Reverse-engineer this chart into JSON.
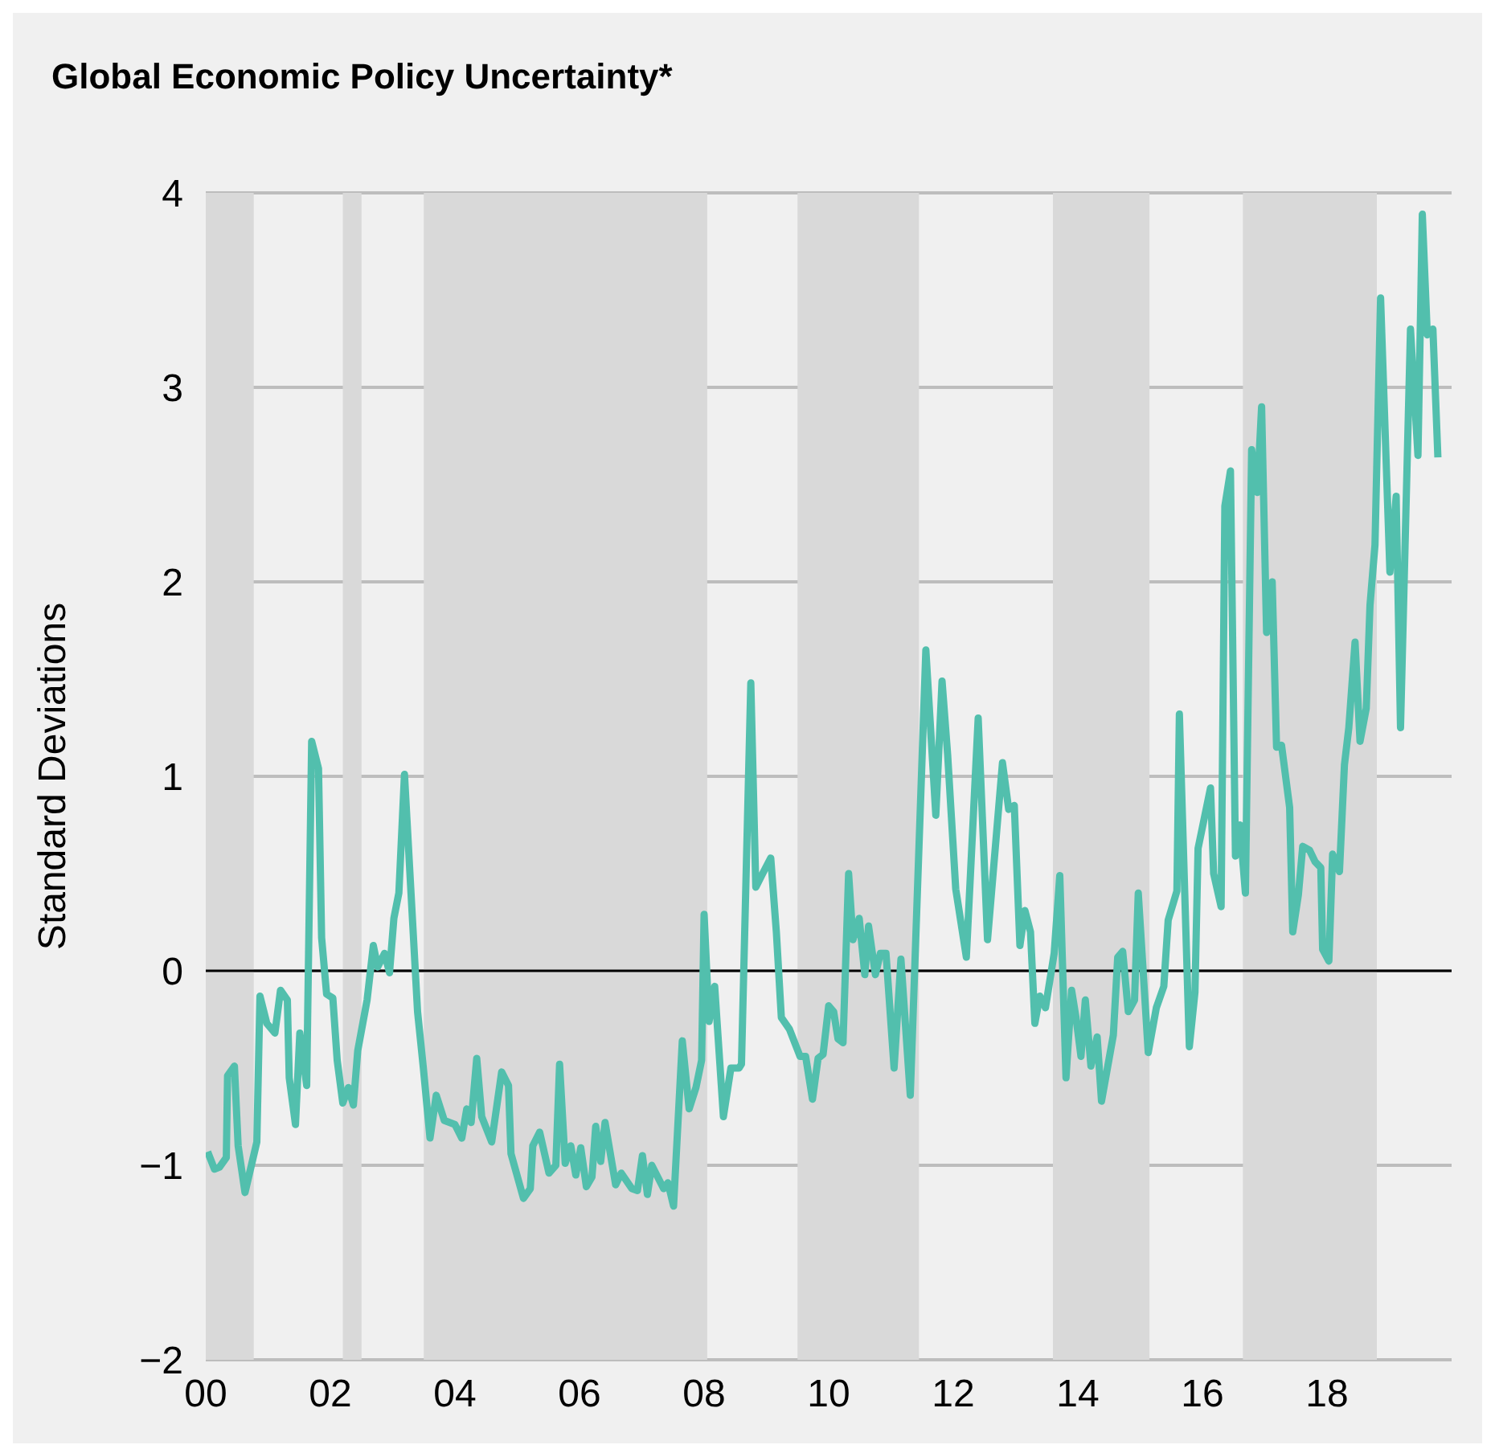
{
  "chart_data": {
    "type": "line",
    "title": "Global Economic Policy Uncertainty*",
    "ylabel": "Standard Deviations",
    "x": [
      2000.03,
      2000.14,
      2000.22,
      2000.33,
      2000.35,
      2000.46,
      2000.52,
      2000.63,
      2000.82,
      2000.87,
      2000.98,
      2001.11,
      2001.2,
      2001.31,
      2001.34,
      2001.44,
      2001.51,
      2001.62,
      2001.7,
      2001.81,
      2001.86,
      2001.94,
      2002.04,
      2002.11,
      2002.2,
      2002.29,
      2002.37,
      2002.44,
      2002.59,
      2002.69,
      2002.76,
      2002.87,
      2002.95,
      2003.02,
      2003.1,
      2003.19,
      2003.4,
      2003.49,
      2003.6,
      2003.7,
      2003.83,
      2004.0,
      2004.11,
      2004.19,
      2004.26,
      2004.35,
      2004.43,
      2004.59,
      2004.75,
      2004.86,
      2004.9,
      2005.1,
      2005.21,
      2005.25,
      2005.36,
      2005.51,
      2005.62,
      2005.68,
      2005.77,
      2005.86,
      2005.94,
      2006.02,
      2006.11,
      2006.2,
      2006.26,
      2006.34,
      2006.41,
      2006.58,
      2006.67,
      2006.84,
      2006.93,
      2007.01,
      2007.09,
      2007.16,
      2007.35,
      2007.42,
      2007.51,
      2007.65,
      2007.76,
      2007.87,
      2007.96,
      2008.0,
      2008.08,
      2008.17,
      2008.31,
      2008.43,
      2008.56,
      2008.6,
      2008.75,
      2008.83,
      2008.94,
      2009.07,
      2009.16,
      2009.24,
      2009.37,
      2009.54,
      2009.63,
      2009.74,
      2009.83,
      2009.91,
      2010.0,
      2010.08,
      2010.15,
      2010.23,
      2010.32,
      2010.39,
      2010.49,
      2010.58,
      2010.64,
      2010.75,
      2010.83,
      2010.92,
      2011.05,
      2011.16,
      2011.31,
      2011.56,
      2011.72,
      2011.82,
      2011.91,
      2012.04,
      2012.21,
      2012.4,
      2012.55,
      2012.79,
      2012.89,
      2012.98,
      2013.07,
      2013.15,
      2013.24,
      2013.31,
      2013.39,
      2013.48,
      2013.62,
      2013.71,
      2013.81,
      2013.9,
      2013.97,
      2014.05,
      2014.12,
      2014.21,
      2014.31,
      2014.38,
      2014.57,
      2014.64,
      2014.72,
      2014.81,
      2014.91,
      2014.97,
      2015.13,
      2015.26,
      2015.38,
      2015.45,
      2015.59,
      2015.63,
      2015.79,
      2015.88,
      2015.93,
      2016.13,
      2016.18,
      2016.3,
      2016.36,
      2016.45,
      2016.53,
      2016.6,
      2016.69,
      2016.79,
      2016.88,
      2016.95,
      2017.03,
      2017.12,
      2017.19,
      2017.27,
      2017.4,
      2017.45,
      2017.54,
      2017.61,
      2017.72,
      2017.81,
      2017.9,
      2017.93,
      2018.03,
      2018.09,
      2018.2,
      2018.28,
      2018.35,
      2018.45,
      2018.53,
      2018.63,
      2018.69,
      2018.77,
      2018.86,
      2019.01,
      2019.11,
      2019.18,
      2019.34,
      2019.46,
      2019.53,
      2019.61,
      2019.7,
      2019.78
    ],
    "series": [
      {
        "color": "#52bfad",
        "values": [
          -0.93,
          -1.02,
          -1.01,
          -0.96,
          -0.54,
          -0.49,
          -0.9,
          -1.14,
          -0.88,
          -0.13,
          -0.27,
          -0.32,
          -0.1,
          -0.15,
          -0.55,
          -0.79,
          -0.32,
          -0.59,
          1.18,
          1.04,
          0.17,
          -0.12,
          -0.14,
          -0.46,
          -0.68,
          -0.6,
          -0.69,
          -0.41,
          -0.15,
          0.13,
          0.02,
          0.09,
          -0.01,
          0.27,
          0.4,
          1.01,
          -0.21,
          -0.49,
          -0.86,
          -0.64,
          -0.77,
          -0.79,
          -0.86,
          -0.71,
          -0.78,
          -0.45,
          -0.75,
          -0.88,
          -0.52,
          -0.59,
          -0.94,
          -1.17,
          -1.12,
          -0.9,
          -0.83,
          -1.04,
          -1.0,
          -0.48,
          -0.99,
          -0.9,
          -1.05,
          -0.91,
          -1.11,
          -1.06,
          -0.8,
          -0.98,
          -0.78,
          -1.1,
          -1.04,
          -1.12,
          -1.13,
          -0.95,
          -1.15,
          -1.0,
          -1.12,
          -1.09,
          -1.21,
          -0.36,
          -0.71,
          -0.6,
          -0.46,
          0.29,
          -0.26,
          -0.08,
          -0.75,
          -0.5,
          -0.5,
          -0.48,
          1.48,
          0.43,
          0.5,
          0.58,
          0.2,
          -0.24,
          -0.3,
          -0.44,
          -0.44,
          -0.66,
          -0.45,
          -0.43,
          -0.18,
          -0.21,
          -0.35,
          -0.37,
          0.5,
          0.16,
          0.27,
          -0.02,
          0.23,
          -0.02,
          0.09,
          0.09,
          -0.5,
          0.06,
          -0.64,
          1.65,
          0.8,
          1.49,
          1.11,
          0.42,
          0.07,
          1.3,
          0.16,
          1.07,
          0.83,
          0.85,
          0.13,
          0.31,
          0.2,
          -0.27,
          -0.13,
          -0.19,
          0.09,
          0.49,
          -0.55,
          -0.1,
          -0.24,
          -0.44,
          -0.15,
          -0.49,
          -0.34,
          -0.67,
          -0.33,
          0.07,
          0.1,
          -0.21,
          -0.15,
          0.4,
          -0.42,
          -0.19,
          -0.08,
          0.26,
          0.41,
          1.32,
          -0.39,
          -0.11,
          0.63,
          0.94,
          0.5,
          0.33,
          2.39,
          2.57,
          0.59,
          0.75,
          0.4,
          2.68,
          2.46,
          2.9,
          1.74,
          2.0,
          1.15,
          1.16,
          0.84,
          0.2,
          0.39,
          0.64,
          0.62,
          0.56,
          0.53,
          0.11,
          0.05,
          0.6,
          0.51,
          1.06,
          1.25,
          1.69,
          1.18,
          1.35,
          1.88,
          2.19,
          3.46,
          2.05,
          2.44,
          1.25,
          3.3,
          2.65,
          3.89,
          3.27,
          3.3,
          2.64
        ]
      }
    ],
    "xlim": [
      2000,
      2020
    ],
    "xticks": [
      {
        "value": 2000,
        "label": "00"
      },
      {
        "value": 2002,
        "label": "02"
      },
      {
        "value": 2004,
        "label": "04"
      },
      {
        "value": 2006,
        "label": "06"
      },
      {
        "value": 2008,
        "label": "08"
      },
      {
        "value": 2010,
        "label": "10"
      },
      {
        "value": 2012,
        "label": "12"
      },
      {
        "value": 2014,
        "label": "14"
      },
      {
        "value": 2016,
        "label": "16"
      },
      {
        "value": 2018,
        "label": "18"
      }
    ],
    "ylim": [
      -2,
      4
    ],
    "yticks": [
      {
        "value": -2,
        "label": "−2"
      },
      {
        "value": -1,
        "label": "−1"
      },
      0,
      1,
      2,
      3,
      4
    ],
    "grid": "y",
    "marker": "none",
    "bands": [
      {
        "axis": "x",
        "from": 2000.0,
        "to": 2000.77,
        "color": "#d9d9d9"
      },
      {
        "axis": "x",
        "from": 2002.2,
        "to": 2002.5,
        "color": "#d9d9d9"
      },
      {
        "axis": "x",
        "from": 2003.5,
        "to": 2008.05,
        "color": "#d9d9d9"
      },
      {
        "axis": "x",
        "from": 2009.5,
        "to": 2011.45,
        "color": "#d9d9d9"
      },
      {
        "axis": "x",
        "from": 2013.6,
        "to": 2015.15,
        "color": "#d9d9d9"
      },
      {
        "axis": "x",
        "from": 2016.65,
        "to": 2018.8,
        "color": "#d9d9d9"
      }
    ],
    "ref_lines": [
      {
        "axis": "y",
        "value": 0,
        "color": "#000000"
      }
    ]
  }
}
